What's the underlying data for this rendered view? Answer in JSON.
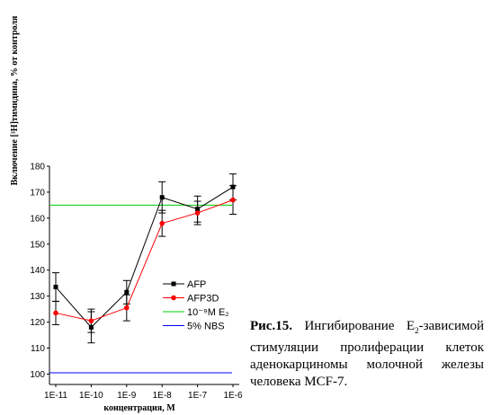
{
  "chart_data": {
    "type": "line",
    "x": [
      "1E-11",
      "1E-10",
      "1E-9",
      "1E-8",
      "1E-7",
      "1E-6"
    ],
    "xlabel": "концентрация, М",
    "ylabel": "Включение [³H]тимидина, % от контроля",
    "ylim": [
      96,
      180
    ],
    "yticks": [
      100,
      110,
      120,
      130,
      140,
      150,
      160,
      170,
      180
    ],
    "grid": false,
    "legend_placement": "center-right",
    "series": [
      {
        "name": "AFP",
        "values": [
          133.5,
          118,
          131.5,
          168,
          163.5,
          172
        ],
        "errors": [
          5.5,
          6,
          4.5,
          6,
          5,
          5
        ],
        "marker": "square",
        "color": "#000000"
      },
      {
        "name": "AFP3D",
        "values": [
          123.5,
          120.5,
          125.5,
          158,
          162,
          167
        ],
        "errors": [
          4.5,
          4.5,
          5,
          5,
          4.5,
          5.5
        ],
        "marker": "circle",
        "color": "#ff0000"
      }
    ],
    "reference_lines": [
      {
        "name": "10⁻⁹М E₂",
        "value": 165,
        "color": "#00cc00"
      },
      {
        "name": "5% NBS",
        "value": 100.5,
        "color": "#0000ff"
      }
    ]
  },
  "caption": {
    "figure_label": "Рис.15.",
    "text_before_sub": " Ингибирование Е",
    "sub": "2",
    "text_after_sub": "-зависимой стимуляции пролиферации клеток аденокарциномы молочной железы человека MCF-7."
  }
}
